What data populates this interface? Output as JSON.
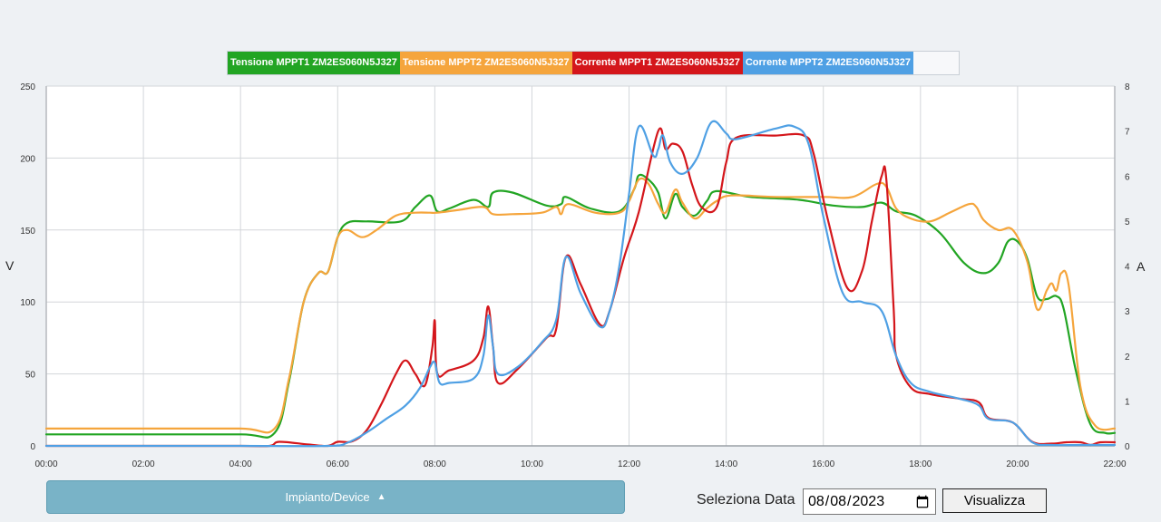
{
  "chart_data": {
    "type": "line",
    "title": "",
    "xlabel": "",
    "ylabel_left": "V",
    "ylabel_right": "A",
    "xlim": [
      0,
      22
    ],
    "ylim_left": [
      0,
      250
    ],
    "ylim_right": [
      0,
      8
    ],
    "x_tick_labels": [
      "00:00",
      "02:00",
      "04:00",
      "06:00",
      "08:00",
      "10:00",
      "12:00",
      "14:00",
      "16:00",
      "18:00",
      "20:00",
      "22:00"
    ],
    "left_tick_labels": [
      "0",
      "50",
      "100",
      "150",
      "200",
      "250"
    ],
    "right_tick_labels": [
      "0",
      "1",
      "2",
      "3",
      "4",
      "5",
      "6",
      "7",
      "8"
    ],
    "grid": true,
    "legend_position": "top-center",
    "series": [
      {
        "name": "Tensione MPPT1 ZM2ES060N5J327",
        "color": "#22a523",
        "axis": "left",
        "points": [
          [
            0,
            8
          ],
          [
            2,
            8
          ],
          [
            4,
            8
          ],
          [
            4.7,
            9
          ],
          [
            5.0,
            45
          ],
          [
            5.3,
            100
          ],
          [
            5.6,
            120
          ],
          [
            5.8,
            121
          ],
          [
            6.0,
            145
          ],
          [
            6.2,
            155
          ],
          [
            6.6,
            156
          ],
          [
            7.3,
            156
          ],
          [
            7.6,
            166
          ],
          [
            7.9,
            174
          ],
          [
            8.05,
            163
          ],
          [
            8.3,
            165
          ],
          [
            8.8,
            171
          ],
          [
            9.1,
            166
          ],
          [
            9.2,
            176
          ],
          [
            9.6,
            176
          ],
          [
            10.3,
            167
          ],
          [
            10.6,
            168
          ],
          [
            10.7,
            173
          ],
          [
            11.2,
            165
          ],
          [
            11.8,
            163
          ],
          [
            12.1,
            178
          ],
          [
            12.2,
            188
          ],
          [
            12.4,
            185
          ],
          [
            12.6,
            176
          ],
          [
            12.75,
            158
          ],
          [
            12.95,
            175
          ],
          [
            13.1,
            166
          ],
          [
            13.35,
            160
          ],
          [
            13.6,
            170
          ],
          [
            13.8,
            177
          ],
          [
            14.5,
            173
          ],
          [
            15.5,
            171
          ],
          [
            16.2,
            167
          ],
          [
            16.8,
            166
          ],
          [
            17.2,
            169
          ],
          [
            17.5,
            163
          ],
          [
            17.9,
            160
          ],
          [
            18.4,
            148
          ],
          [
            18.9,
            127
          ],
          [
            19.3,
            120
          ],
          [
            19.6,
            127
          ],
          [
            19.8,
            142
          ],
          [
            20.0,
            142
          ],
          [
            20.2,
            130
          ],
          [
            20.4,
            104
          ],
          [
            20.6,
            102
          ],
          [
            20.8,
            104
          ],
          [
            20.95,
            95
          ],
          [
            21.2,
            52
          ],
          [
            21.5,
            15
          ],
          [
            21.8,
            9
          ],
          [
            22,
            9
          ]
        ]
      },
      {
        "name": "Tensione MPPT2 ZM2ES060N5J327",
        "color": "#f5a53c",
        "axis": "left",
        "points": [
          [
            0,
            12
          ],
          [
            2,
            12
          ],
          [
            4,
            12
          ],
          [
            4.7,
            12
          ],
          [
            5.0,
            47
          ],
          [
            5.3,
            100
          ],
          [
            5.6,
            120
          ],
          [
            5.8,
            121
          ],
          [
            6.0,
            145
          ],
          [
            6.2,
            150
          ],
          [
            6.5,
            145
          ],
          [
            6.8,
            150
          ],
          [
            7.2,
            160
          ],
          [
            7.6,
            162
          ],
          [
            7.9,
            162
          ],
          [
            8.05,
            162
          ],
          [
            8.5,
            164
          ],
          [
            9.0,
            166
          ],
          [
            9.2,
            161
          ],
          [
            9.6,
            161
          ],
          [
            10.2,
            162
          ],
          [
            10.5,
            166
          ],
          [
            10.6,
            161
          ],
          [
            10.75,
            168
          ],
          [
            11.3,
            162
          ],
          [
            11.8,
            162
          ],
          [
            12.0,
            170
          ],
          [
            12.2,
            185
          ],
          [
            12.4,
            182
          ],
          [
            12.6,
            168
          ],
          [
            12.75,
            162
          ],
          [
            12.95,
            178
          ],
          [
            13.1,
            169
          ],
          [
            13.35,
            158
          ],
          [
            13.6,
            165
          ],
          [
            13.8,
            170
          ],
          [
            14.1,
            174
          ],
          [
            15.0,
            173
          ],
          [
            16.0,
            173
          ],
          [
            16.6,
            173
          ],
          [
            17.1,
            182
          ],
          [
            17.3,
            180
          ],
          [
            17.5,
            165
          ],
          [
            17.8,
            158
          ],
          [
            18.2,
            156
          ],
          [
            18.6,
            162
          ],
          [
            19.0,
            168
          ],
          [
            19.15,
            166
          ],
          [
            19.3,
            157
          ],
          [
            19.6,
            150
          ],
          [
            19.9,
            150
          ],
          [
            20.2,
            128
          ],
          [
            20.4,
            95
          ],
          [
            20.6,
            108
          ],
          [
            20.7,
            113
          ],
          [
            20.8,
            108
          ],
          [
            20.9,
            120
          ],
          [
            21.05,
            112
          ],
          [
            21.3,
            40
          ],
          [
            21.6,
            14
          ],
          [
            22,
            12
          ]
        ]
      },
      {
        "name": "Corrente MPPT1 ZM2ES060N5J327",
        "color": "#d4161b",
        "axis": "right",
        "points": [
          [
            0,
            0
          ],
          [
            2,
            0
          ],
          [
            4,
            0
          ],
          [
            4.6,
            0
          ],
          [
            4.8,
            0.09
          ],
          [
            5.4,
            0.03
          ],
          [
            5.8,
            0
          ],
          [
            6.0,
            0.09
          ],
          [
            6.3,
            0.1
          ],
          [
            6.6,
            0.35
          ],
          [
            6.9,
            0.93
          ],
          [
            7.2,
            1.6
          ],
          [
            7.4,
            1.9
          ],
          [
            7.6,
            1.6
          ],
          [
            7.8,
            1.35
          ],
          [
            7.95,
            2.2
          ],
          [
            8.0,
            2.78
          ],
          [
            8.05,
            1.62
          ],
          [
            8.3,
            1.68
          ],
          [
            8.8,
            1.9
          ],
          [
            9.0,
            2.4
          ],
          [
            9.1,
            3.1
          ],
          [
            9.2,
            2.2
          ],
          [
            9.3,
            1.4
          ],
          [
            9.7,
            1.7
          ],
          [
            10.3,
            2.4
          ],
          [
            10.5,
            2.6
          ],
          [
            10.7,
            4.2
          ],
          [
            11.0,
            3.6
          ],
          [
            11.4,
            2.7
          ],
          [
            11.6,
            3.0
          ],
          [
            11.9,
            4.2
          ],
          [
            12.2,
            5.2
          ],
          [
            12.6,
            7.0
          ],
          [
            12.75,
            6.6
          ],
          [
            12.9,
            6.72
          ],
          [
            13.1,
            6.55
          ],
          [
            13.3,
            5.8
          ],
          [
            13.5,
            5.3
          ],
          [
            13.8,
            5.3
          ],
          [
            14.0,
            6.3
          ],
          [
            14.2,
            6.85
          ],
          [
            15.0,
            6.9
          ],
          [
            15.6,
            6.9
          ],
          [
            15.8,
            6.5
          ],
          [
            16.1,
            5.0
          ],
          [
            16.5,
            3.5
          ],
          [
            16.8,
            3.9
          ],
          [
            17.0,
            5.0
          ],
          [
            17.2,
            6.0
          ],
          [
            17.3,
            5.9
          ],
          [
            17.45,
            3.0
          ],
          [
            17.5,
            2.0
          ],
          [
            17.8,
            1.3
          ],
          [
            18.2,
            1.15
          ],
          [
            18.8,
            1.05
          ],
          [
            19.2,
            0.97
          ],
          [
            19.4,
            0.62
          ],
          [
            19.9,
            0.52
          ],
          [
            20.3,
            0.09
          ],
          [
            20.7,
            0.05
          ],
          [
            21,
            0.08
          ],
          [
            21.3,
            0.08
          ],
          [
            21.5,
            0.02
          ],
          [
            21.7,
            0.08
          ],
          [
            22,
            0.08
          ]
        ]
      },
      {
        "name": "Corrente MPPT2 ZM2ES060N5J327",
        "color": "#4fa0e4",
        "axis": "right",
        "points": [
          [
            0,
            0
          ],
          [
            2,
            0
          ],
          [
            4,
            0
          ],
          [
            5.8,
            0
          ],
          [
            6.2,
            0.07
          ],
          [
            6.6,
            0.3
          ],
          [
            7.0,
            0.6
          ],
          [
            7.4,
            0.9
          ],
          [
            7.7,
            1.3
          ],
          [
            7.9,
            1.75
          ],
          [
            8.0,
            1.85
          ],
          [
            8.1,
            1.4
          ],
          [
            8.3,
            1.4
          ],
          [
            8.8,
            1.5
          ],
          [
            9.0,
            2.0
          ],
          [
            9.1,
            2.9
          ],
          [
            9.2,
            2.2
          ],
          [
            9.3,
            1.6
          ],
          [
            9.7,
            1.75
          ],
          [
            10.2,
            2.3
          ],
          [
            10.5,
            2.8
          ],
          [
            10.7,
            4.2
          ],
          [
            11.0,
            3.4
          ],
          [
            11.4,
            2.65
          ],
          [
            11.6,
            3.0
          ],
          [
            11.8,
            4.0
          ],
          [
            12.0,
            5.6
          ],
          [
            12.2,
            7.1
          ],
          [
            12.5,
            6.45
          ],
          [
            12.6,
            6.6
          ],
          [
            12.7,
            6.9
          ],
          [
            12.85,
            6.3
          ],
          [
            13.1,
            6.05
          ],
          [
            13.4,
            6.4
          ],
          [
            13.7,
            7.2
          ],
          [
            14.0,
            6.95
          ],
          [
            14.2,
            6.82
          ],
          [
            15.0,
            7.05
          ],
          [
            15.4,
            7.1
          ],
          [
            15.7,
            6.7
          ],
          [
            16.0,
            5.1
          ],
          [
            16.4,
            3.4
          ],
          [
            16.8,
            3.2
          ],
          [
            17.2,
            3.0
          ],
          [
            17.5,
            2.0
          ],
          [
            17.8,
            1.4
          ],
          [
            18.2,
            1.2
          ],
          [
            18.8,
            1.05
          ],
          [
            19.2,
            0.9
          ],
          [
            19.4,
            0.6
          ],
          [
            19.9,
            0.52
          ],
          [
            20.3,
            0.08
          ],
          [
            20.7,
            0.02
          ],
          [
            21.3,
            0.02
          ],
          [
            22,
            0.02
          ]
        ]
      }
    ]
  },
  "controls": {
    "device_button_label": "Impianto/Device",
    "date_label": "Seleziona Data",
    "date_value": "2023-08-08",
    "view_button_label": "Visualizza"
  }
}
